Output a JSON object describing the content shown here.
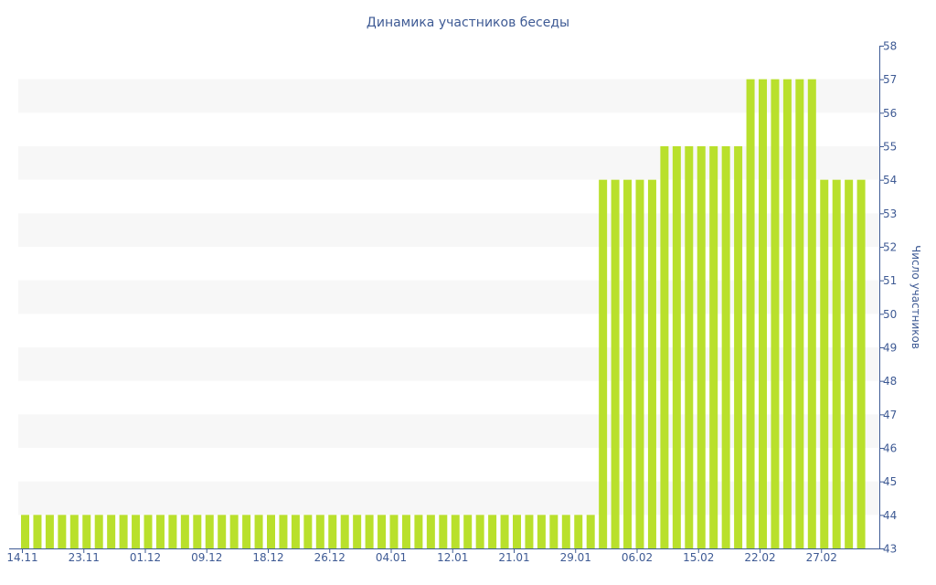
{
  "chart_data": {
    "type": "bar",
    "title": "Динамика участников беседы",
    "ylabel": "Число участников",
    "xlabel": "",
    "ylim": [
      43,
      58
    ],
    "yticks": [
      43,
      44,
      45,
      46,
      47,
      48,
      49,
      50,
      51,
      52,
      53,
      54,
      55,
      56,
      57,
      58
    ],
    "y_axis_position": "right",
    "grid": "alternating horizontal bands",
    "bar_color": "#b9e02c",
    "axis_color": "#3e5a94",
    "band_color": "#f7f7f7",
    "x_tick_labels": [
      {
        "index": 0,
        "label": "14.11"
      },
      {
        "index": 5,
        "label": "23.11"
      },
      {
        "index": 10,
        "label": "01.12"
      },
      {
        "index": 15,
        "label": "09.12"
      },
      {
        "index": 20,
        "label": "18.12"
      },
      {
        "index": 25,
        "label": "26.12"
      },
      {
        "index": 30,
        "label": "04.01"
      },
      {
        "index": 35,
        "label": "12.01"
      },
      {
        "index": 40,
        "label": "21.01"
      },
      {
        "index": 45,
        "label": "29.01"
      },
      {
        "index": 50,
        "label": "06.02"
      },
      {
        "index": 55,
        "label": "15.02"
      },
      {
        "index": 60,
        "label": "22.02"
      },
      {
        "index": 65,
        "label": "27.02"
      }
    ],
    "values": [
      44,
      44,
      44,
      44,
      44,
      44,
      44,
      44,
      44,
      44,
      44,
      44,
      44,
      44,
      44,
      44,
      44,
      44,
      44,
      44,
      44,
      44,
      44,
      44,
      44,
      44,
      44,
      44,
      44,
      44,
      44,
      44,
      44,
      44,
      44,
      44,
      44,
      44,
      44,
      44,
      44,
      44,
      44,
      44,
      44,
      44,
      44,
      54,
      54,
      54,
      54,
      54,
      55,
      55,
      55,
      55,
      55,
      55,
      55,
      57,
      57,
      57,
      57,
      57,
      57,
      54,
      54,
      54,
      54
    ]
  }
}
